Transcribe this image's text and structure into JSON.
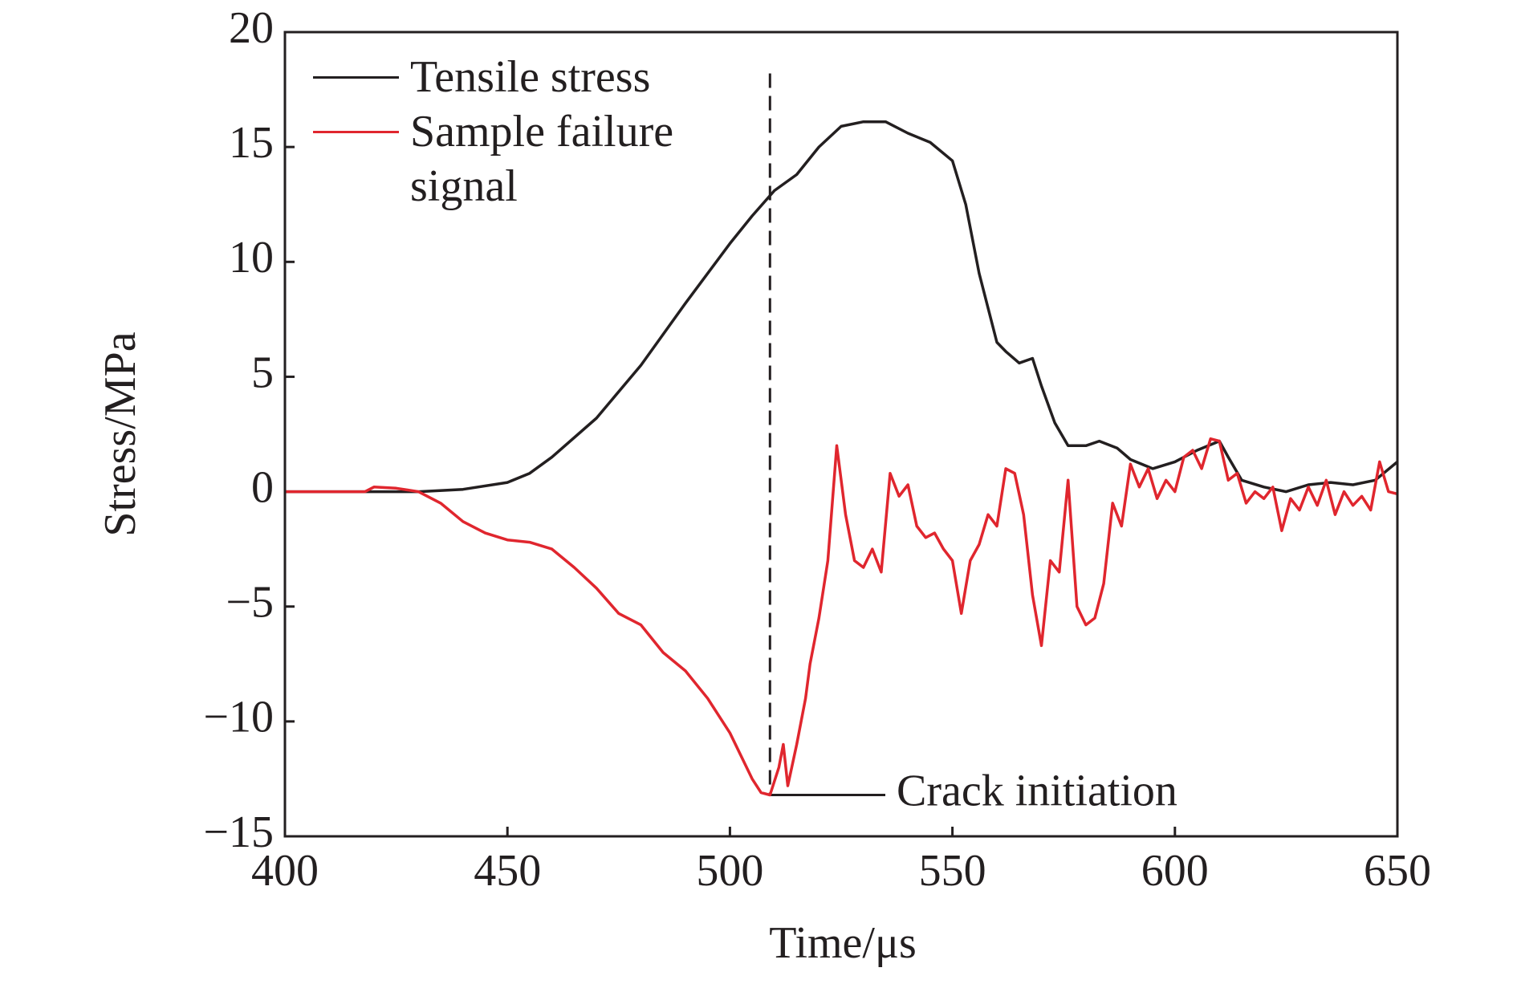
{
  "chart_data": {
    "type": "line",
    "x_label": "Time/μs",
    "y_label": "Stress/MPa",
    "xlim": [
      400,
      650
    ],
    "xticks": [
      400,
      450,
      500,
      550,
      600,
      650
    ],
    "ylim": [
      -15,
      20
    ],
    "yticks": [
      {
        "value": -15,
        "label": "−15"
      },
      {
        "value": -10,
        "label": "−10"
      },
      {
        "value": -5,
        "label": "−5"
      },
      0,
      5,
      10,
      15,
      20
    ],
    "series": [
      {
        "name": "Tensile stress",
        "color": "#231f20",
        "x": [
          400,
          430,
          440,
          450,
          455,
          460,
          470,
          480,
          490,
          500,
          505,
          510,
          515,
          520,
          525,
          530,
          535,
          540,
          545,
          550,
          553,
          556,
          560,
          562,
          565,
          568,
          570,
          573,
          576,
          580,
          583,
          587,
          590,
          595,
          600,
          605,
          610,
          612,
          615,
          620,
          625,
          630,
          635,
          640,
          645,
          650
        ],
        "values": [
          0,
          0,
          0.1,
          0.4,
          0.8,
          1.5,
          3.2,
          5.5,
          8.2,
          10.8,
          12,
          13.1,
          13.8,
          15,
          15.9,
          16.1,
          16.1,
          15.6,
          15.2,
          14.4,
          12.5,
          9.5,
          6.5,
          6.1,
          5.6,
          5.8,
          4.6,
          3,
          2,
          2,
          2.2,
          1.9,
          1.4,
          1,
          1.3,
          1.8,
          2.2,
          1.5,
          0.5,
          0.2,
          0,
          0.3,
          0.4,
          0.3,
          0.5,
          1.3
        ]
      },
      {
        "name": "Sample failure signal",
        "color": "#e0262e",
        "x": [
          400,
          418,
          420,
          425,
          430,
          435,
          440,
          445,
          450,
          455,
          460,
          465,
          470,
          475,
          480,
          485,
          490,
          495,
          500,
          505,
          507,
          509,
          511,
          512,
          513,
          515,
          517,
          518,
          520,
          522,
          524,
          526,
          528,
          530,
          532,
          534,
          536,
          538,
          540,
          542,
          544,
          546,
          548,
          550,
          552,
          554,
          556,
          558,
          560,
          562,
          564,
          566,
          568,
          570,
          572,
          574,
          576,
          578,
          580,
          582,
          584,
          586,
          588,
          590,
          592,
          594,
          596,
          598,
          600,
          602,
          604,
          606,
          608,
          610,
          612,
          614,
          616,
          618,
          620,
          622,
          624,
          626,
          628,
          630,
          632,
          634,
          636,
          638,
          640,
          642,
          644,
          646,
          648,
          650
        ],
        "values": [
          0,
          0,
          0.2,
          0.15,
          0,
          -0.5,
          -1.3,
          -1.8,
          -2.1,
          -2.2,
          -2.5,
          -3.3,
          -4.2,
          -5.3,
          -5.8,
          -7,
          -7.8,
          -9,
          -10.5,
          -12.5,
          -13.1,
          -13.2,
          -12,
          -11,
          -12.8,
          -11,
          -9,
          -7.5,
          -5.5,
          -3,
          2,
          -1,
          -3,
          -3.3,
          -2.5,
          -3.5,
          0.8,
          -0.2,
          0.3,
          -1.5,
          -2,
          -1.8,
          -2.5,
          -3,
          -5.3,
          -3,
          -2.3,
          -1,
          -1.5,
          1,
          0.8,
          -1,
          -4.5,
          -6.7,
          -3,
          -3.5,
          0.5,
          -5,
          -5.8,
          -5.5,
          -4,
          -0.5,
          -1.5,
          1.2,
          0.2,
          1,
          -0.3,
          0.5,
          0,
          1.5,
          1.8,
          1,
          2.3,
          2.2,
          0.5,
          0.8,
          -0.5,
          0,
          -0.3,
          0.2,
          -1.7,
          -0.3,
          -0.8,
          0.2,
          -0.6,
          0.5,
          -1,
          0,
          -0.6,
          -0.2,
          -0.8,
          1.3,
          0,
          -0.1
        ]
      }
    ],
    "annotation": {
      "text": "Crack initiation",
      "x": 509,
      "y": -13.2
    }
  }
}
